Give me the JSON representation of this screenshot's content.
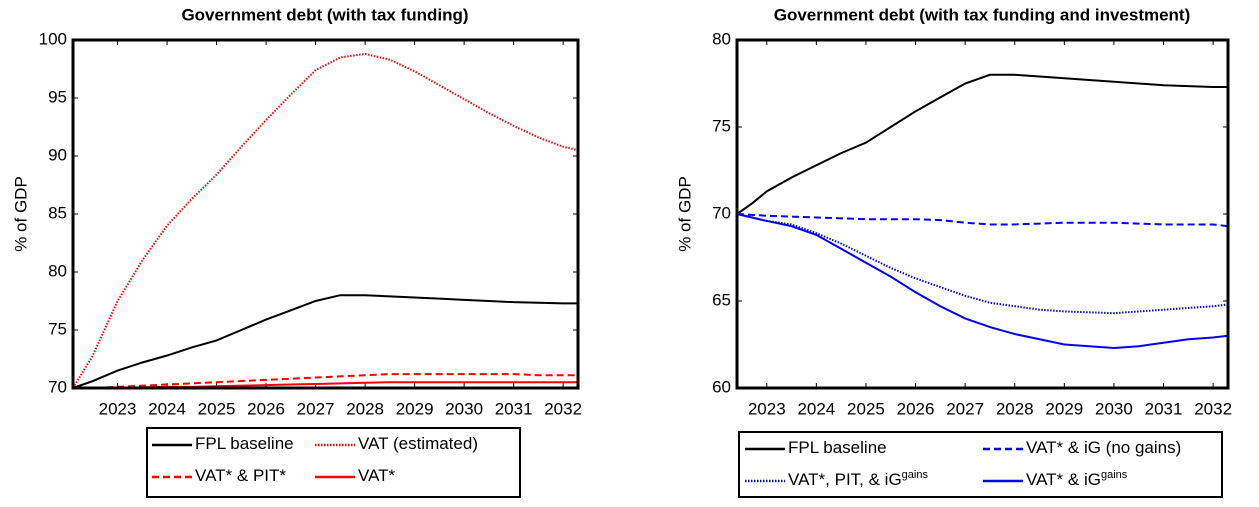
{
  "chart_data": [
    {
      "type": "line",
      "title": "Government debt (with tax funding)",
      "ylabel": "% of GDP",
      "x": [
        2022.1,
        2022.5,
        2023,
        2023.5,
        2024,
        2024.5,
        2025,
        2025.5,
        2026,
        2026.5,
        2027,
        2027.5,
        2028,
        2028.5,
        2029,
        2029.5,
        2030,
        2030.5,
        2031,
        2031.5,
        2032,
        2032.3
      ],
      "xlim": [
        2022.1,
        2032.3
      ],
      "xticks": [
        2023,
        2024,
        2025,
        2026,
        2027,
        2028,
        2029,
        2030,
        2031,
        2032
      ],
      "ylim": [
        70,
        100
      ],
      "yticks": [
        70,
        75,
        80,
        85,
        90,
        95,
        100
      ],
      "series": [
        {
          "name": "FPL baseline",
          "color": "#000000",
          "style": "solid",
          "values": [
            70,
            70.6,
            71.5,
            72.2,
            72.8,
            73.5,
            74.1,
            75.0,
            75.9,
            76.7,
            77.5,
            78.0,
            78.0,
            77.9,
            77.8,
            77.7,
            77.6,
            77.5,
            77.4,
            77.35,
            77.3,
            77.3
          ]
        },
        {
          "name": "VAT (estimated)",
          "color": "#ff0000",
          "style": "dotted",
          "values": [
            70,
            72.8,
            77.5,
            81,
            84,
            86.3,
            88.4,
            90.8,
            93.1,
            95.3,
            97.4,
            98.5,
            98.8,
            98.3,
            97.3,
            96.1,
            94.9,
            93.7,
            92.6,
            91.6,
            90.8,
            90.5
          ]
        },
        {
          "name": "VAT* & PIT*",
          "color": "#ff0000",
          "style": "dashed",
          "values": [
            70,
            70,
            70.1,
            70.2,
            70.3,
            70.4,
            70.5,
            70.6,
            70.7,
            70.8,
            70.9,
            71.0,
            71.1,
            71.2,
            71.2,
            71.2,
            71.2,
            71.2,
            71.2,
            71.1,
            71.1,
            71.1
          ]
        },
        {
          "name": "VAT*",
          "color": "#ff0000",
          "style": "solid",
          "values": [
            70,
            70,
            70,
            70.05,
            70.1,
            70.1,
            70.15,
            70.2,
            70.25,
            70.3,
            70.35,
            70.4,
            70.45,
            70.5,
            70.5,
            70.5,
            70.5,
            70.5,
            70.5,
            70.5,
            70.5,
            70.5
          ]
        }
      ]
    },
    {
      "type": "line",
      "title": "Government debt (with tax funding and investment)",
      "ylabel": "% of GDP",
      "x": [
        2022.4,
        2022.7,
        2023,
        2023.5,
        2024,
        2024.5,
        2025,
        2025.5,
        2026,
        2026.5,
        2027,
        2027.5,
        2028,
        2028.5,
        2029,
        2029.5,
        2030,
        2030.5,
        2031,
        2031.5,
        2032,
        2032.3
      ],
      "xlim": [
        2022.4,
        2032.3
      ],
      "xticks": [
        2023,
        2024,
        2025,
        2026,
        2027,
        2028,
        2029,
        2030,
        2031,
        2032
      ],
      "ylim": [
        60,
        80
      ],
      "yticks": [
        60,
        65,
        70,
        75,
        80
      ],
      "series": [
        {
          "name": "FPL baseline",
          "color": "#000000",
          "style": "solid",
          "values": [
            70,
            70.6,
            71.3,
            72.1,
            72.8,
            73.5,
            74.1,
            75.0,
            75.9,
            76.7,
            77.5,
            78.0,
            78.0,
            77.9,
            77.8,
            77.7,
            77.6,
            77.5,
            77.4,
            77.35,
            77.3,
            77.3
          ]
        },
        {
          "name": "VAT* & iG (no gains)",
          "color": "#0000ff",
          "style": "dashed",
          "values": [
            70,
            69.95,
            69.9,
            69.85,
            69.8,
            69.75,
            69.7,
            69.7,
            69.7,
            69.65,
            69.5,
            69.4,
            69.4,
            69.45,
            69.5,
            69.5,
            69.5,
            69.45,
            69.4,
            69.4,
            69.4,
            69.3
          ]
        },
        {
          "name": "VAT*, PIT, & iG",
          "superscript": "gains",
          "color": "#0000ff",
          "style": "dotted",
          "values": [
            70,
            69.8,
            69.6,
            69.4,
            68.9,
            68.3,
            67.6,
            66.9,
            66.3,
            65.8,
            65.3,
            64.9,
            64.7,
            64.5,
            64.4,
            64.35,
            64.3,
            64.4,
            64.5,
            64.6,
            64.7,
            64.8
          ]
        },
        {
          "name": "VAT* & iG",
          "superscript": "gains",
          "color": "#0000ff",
          "style": "solid",
          "values": [
            70,
            69.8,
            69.6,
            69.3,
            68.8,
            68.0,
            67.2,
            66.4,
            65.5,
            64.7,
            64.0,
            63.5,
            63.1,
            62.8,
            62.5,
            62.4,
            62.3,
            62.4,
            62.6,
            62.8,
            62.9,
            63.0
          ]
        }
      ]
    }
  ]
}
